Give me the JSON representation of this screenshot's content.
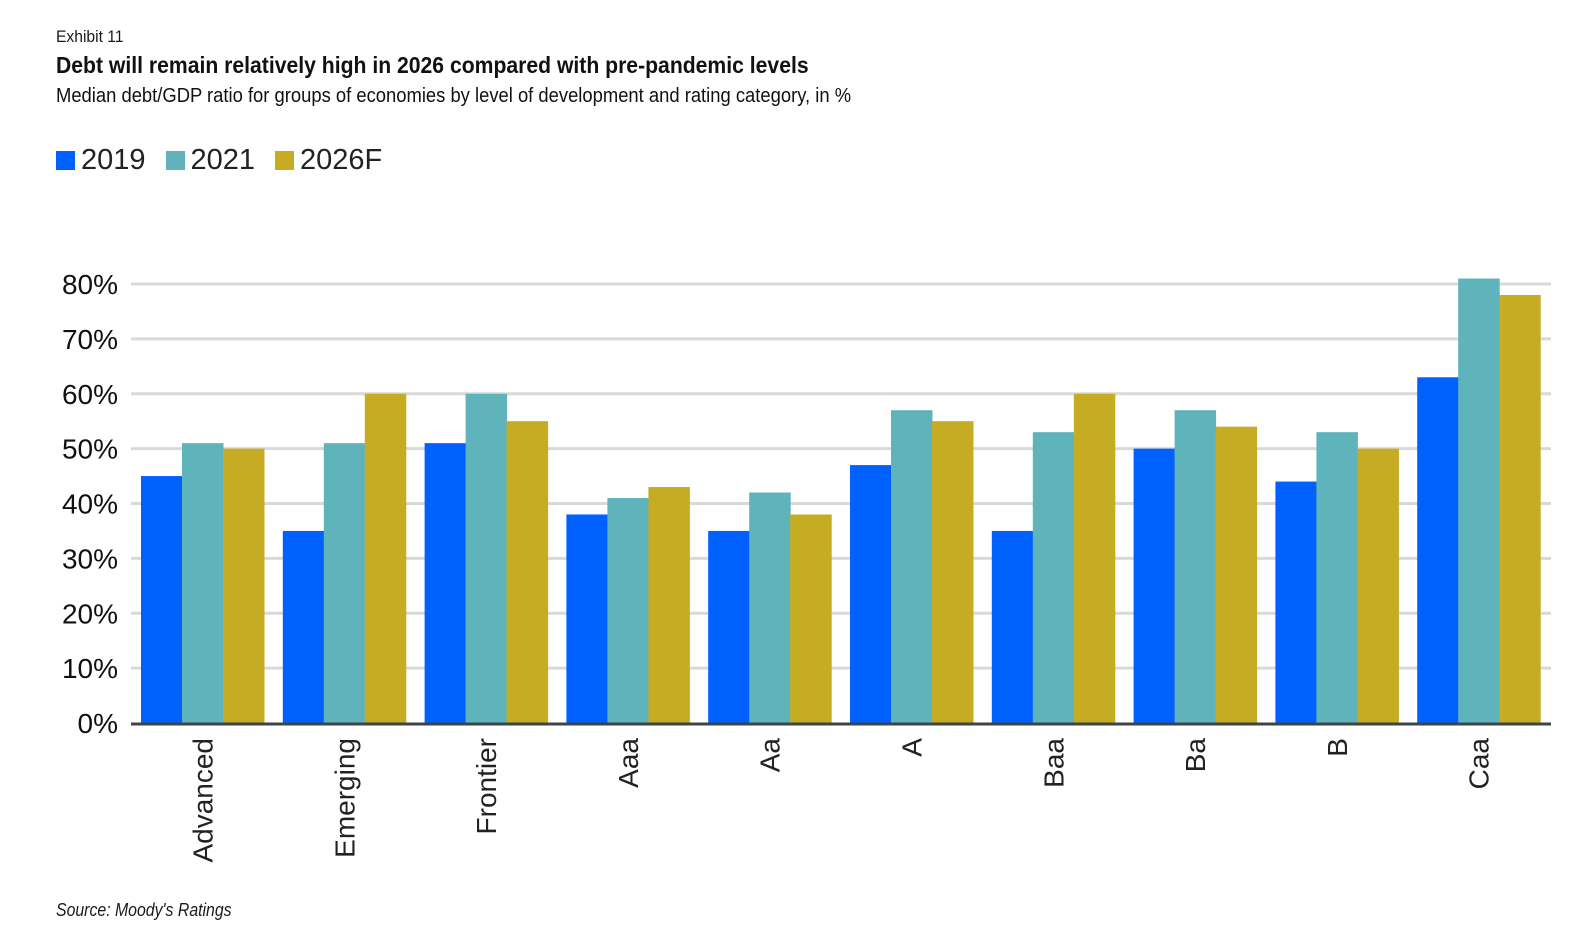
{
  "header": {
    "exhibit": "Exhibit 11",
    "title": "Debt will remain relatively high in 2026 compared with pre-pandemic levels",
    "subtitle": "Median debt/GDP ratio for groups of economies by level of development and rating category, in %"
  },
  "legend": [
    {
      "label": "2019",
      "color": "#0061FF"
    },
    {
      "label": "2021",
      "color": "#5FB4BB"
    },
    {
      "label": "2026F",
      "color": "#C6AC22"
    }
  ],
  "source": "Source: Moody's Ratings",
  "chart_data": {
    "type": "bar",
    "title": "Debt will remain relatively high in 2026 compared with pre-pandemic levels",
    "subtitle": "Median debt/GDP ratio for groups of economies by level of development and rating category, in %",
    "xlabel": "",
    "ylabel": "",
    "categories": [
      "Advanced",
      "Emerging",
      "Frontier",
      "Aaa",
      "Aa",
      "A",
      "Baa",
      "Ba",
      "B",
      "Caa"
    ],
    "series": [
      {
        "name": "2019",
        "color": "#0061FF",
        "values": [
          45,
          35,
          51,
          38,
          35,
          47,
          35,
          50,
          44,
          63
        ]
      },
      {
        "name": "2021",
        "color": "#5FB4BB",
        "values": [
          51,
          51,
          60,
          41,
          42,
          57,
          53,
          57,
          53,
          81
        ]
      },
      {
        "name": "2026F",
        "color": "#C6AC22",
        "values": [
          50,
          60,
          55,
          43,
          38,
          55,
          60,
          54,
          50,
          78
        ]
      }
    ],
    "ylim": [
      0,
      80
    ],
    "yticks": [
      0,
      10,
      20,
      30,
      40,
      50,
      60,
      70,
      80
    ],
    "ytick_labels": [
      "0%",
      "10%",
      "20%",
      "30%",
      "40%",
      "50%",
      "60%",
      "70%",
      "80%"
    ],
    "grid": true,
    "legend_position": "top-left",
    "source": "Source: Moody's Ratings"
  }
}
